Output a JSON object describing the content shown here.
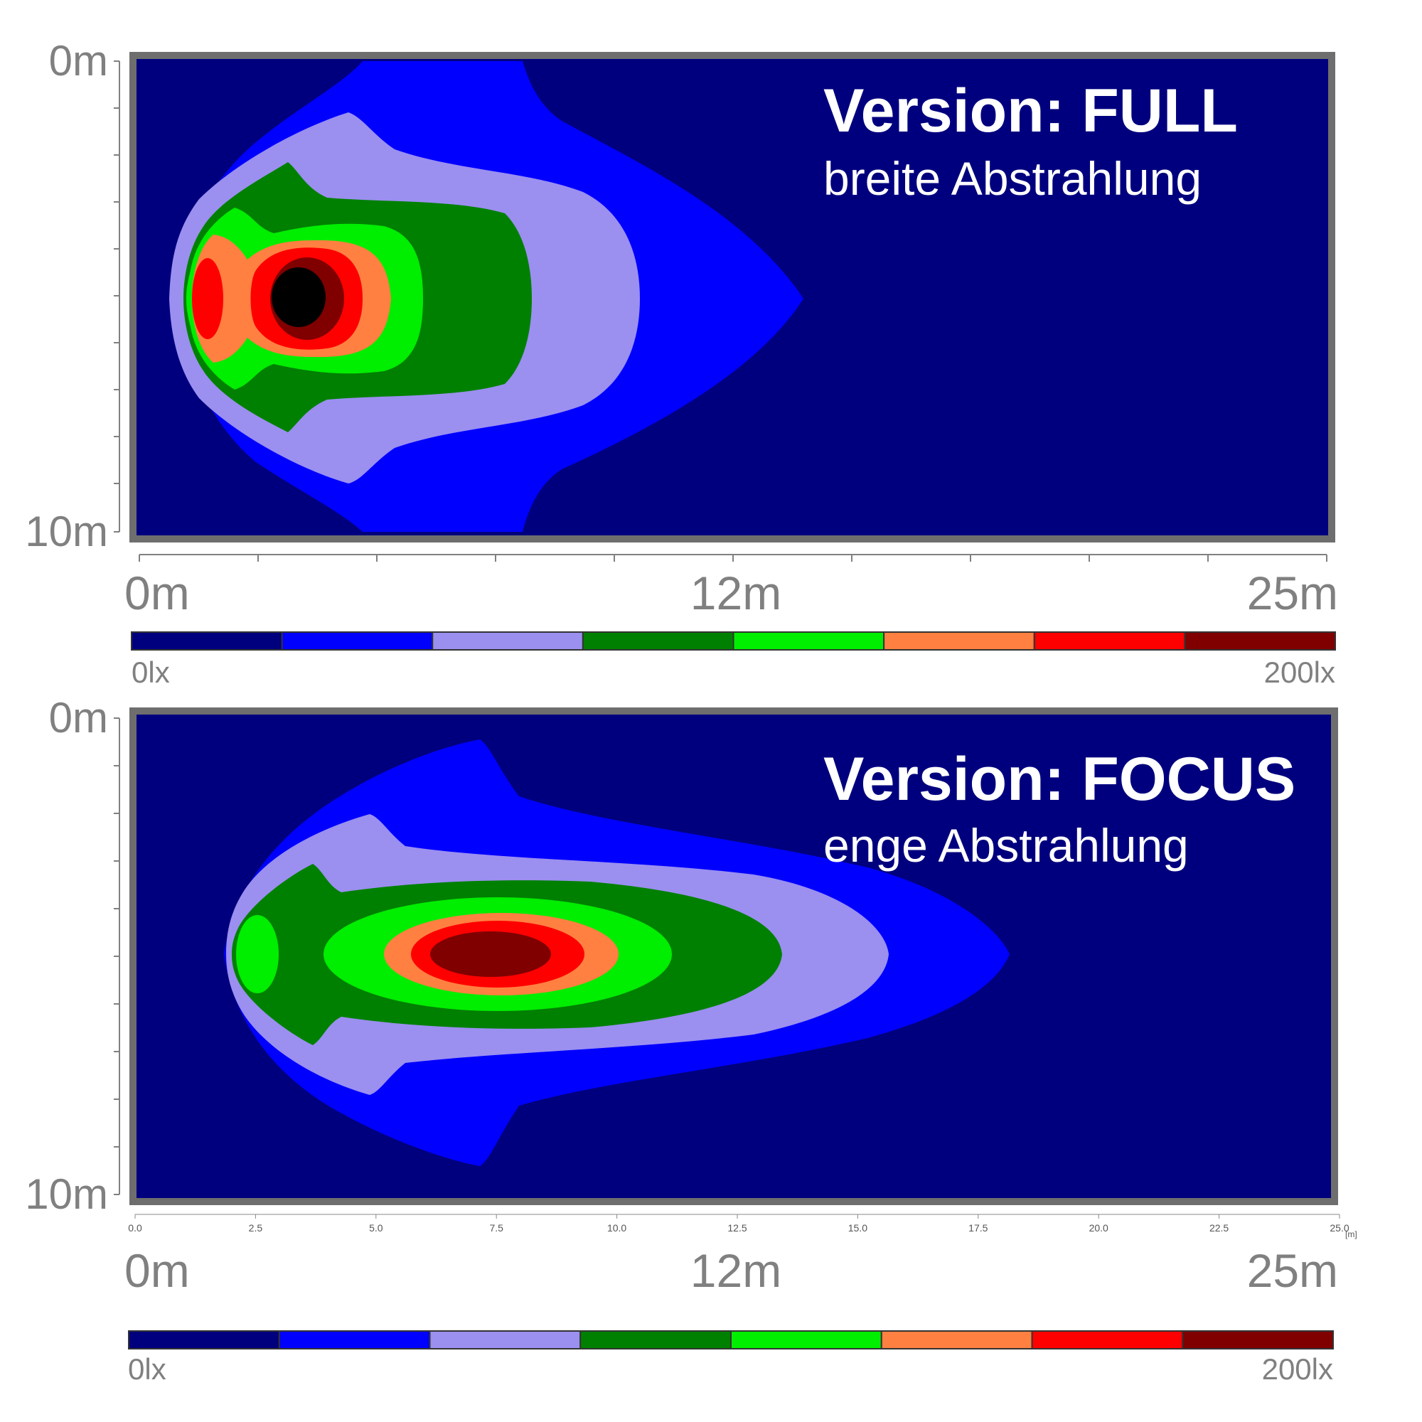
{
  "chart_data": [
    {
      "type": "heatmap",
      "title": "Version: FULL",
      "subtitle": "breite Abstrahlung",
      "y_labels": [
        "0m",
        "10m"
      ],
      "x_labels": [
        "0m",
        "12m",
        "25m"
      ],
      "xlim": [
        0,
        25
      ],
      "ylim": [
        0,
        10
      ],
      "colorbar": {
        "min_label": "0lx",
        "max_label": "200lx",
        "colors": [
          "#00007e",
          "#0000ff",
          "#9b8ff0",
          "#008000",
          "#00ee00",
          "#ff8040",
          "#ff0000",
          "#800000"
        ]
      }
    },
    {
      "type": "heatmap",
      "title": "Version: FOCUS",
      "subtitle": "enge Abstrahlung",
      "y_labels": [
        "0m",
        "10m"
      ],
      "x_labels": [
        "0m",
        "12m",
        "25m"
      ],
      "x_tick_labels": [
        "0.0",
        "2.5",
        "5.0",
        "7.5",
        "10.0",
        "12.5",
        "15.0",
        "17.5",
        "20.0",
        "22.5",
        "25.0"
      ],
      "x_unit": "[m]",
      "xlim": [
        0,
        25
      ],
      "ylim": [
        0,
        10
      ],
      "colorbar": {
        "min_label": "0lx",
        "max_label": "200lx",
        "colors": [
          "#00007e",
          "#0000ff",
          "#9b8ff0",
          "#008000",
          "#00ee00",
          "#ff8040",
          "#ff0000",
          "#800000"
        ]
      }
    }
  ]
}
